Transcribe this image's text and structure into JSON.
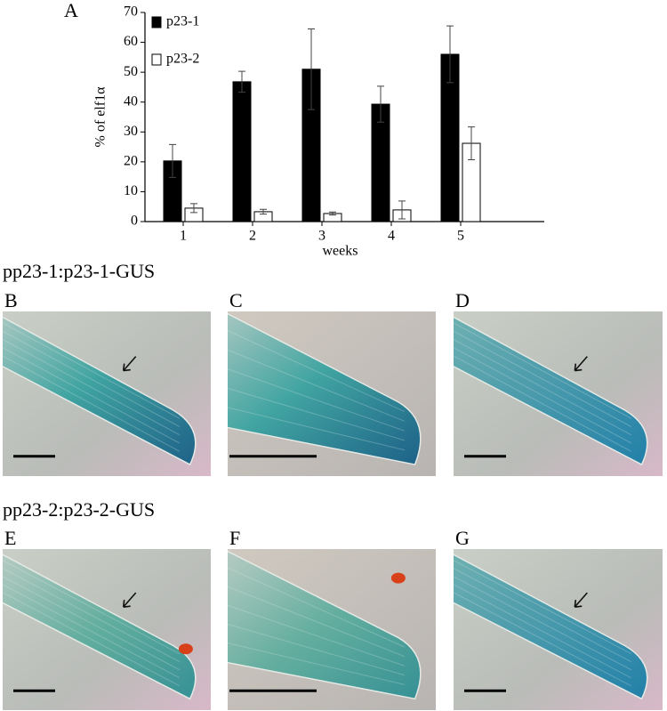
{
  "chart_data": {
    "type": "bar",
    "y_label": "% of elf1α",
    "x_label": "weeks",
    "categories": [
      "1",
      "2",
      "3",
      "4",
      "5"
    ],
    "series": [
      {
        "name": "p23-1",
        "color": "#000000",
        "values": [
          20.3,
          46.8,
          51,
          39.3,
          56
        ],
        "errors": [
          5.5,
          3.5,
          13.5,
          6,
          9.5
        ]
      },
      {
        "name": "p23-2",
        "color": "#ffffff",
        "values": [
          4.5,
          3.3,
          2.7,
          3.9,
          26.2
        ],
        "errors": [
          1.5,
          0.8,
          0.5,
          3,
          5.5
        ]
      }
    ],
    "ylim": [
      0,
      70
    ],
    "yticks": [
      0,
      10,
      20,
      30,
      40,
      50,
      60,
      70
    ],
    "grid": false,
    "legend": "top-left"
  },
  "figure": {
    "chart_label": "A",
    "rows": [
      {
        "title": "pp23-1:p23-1-GUS",
        "panels": [
          "B",
          "C",
          "D"
        ]
      },
      {
        "title": "pp23-2:p23-2-GUS",
        "panels": [
          "E",
          "F",
          "G"
        ]
      }
    ]
  }
}
